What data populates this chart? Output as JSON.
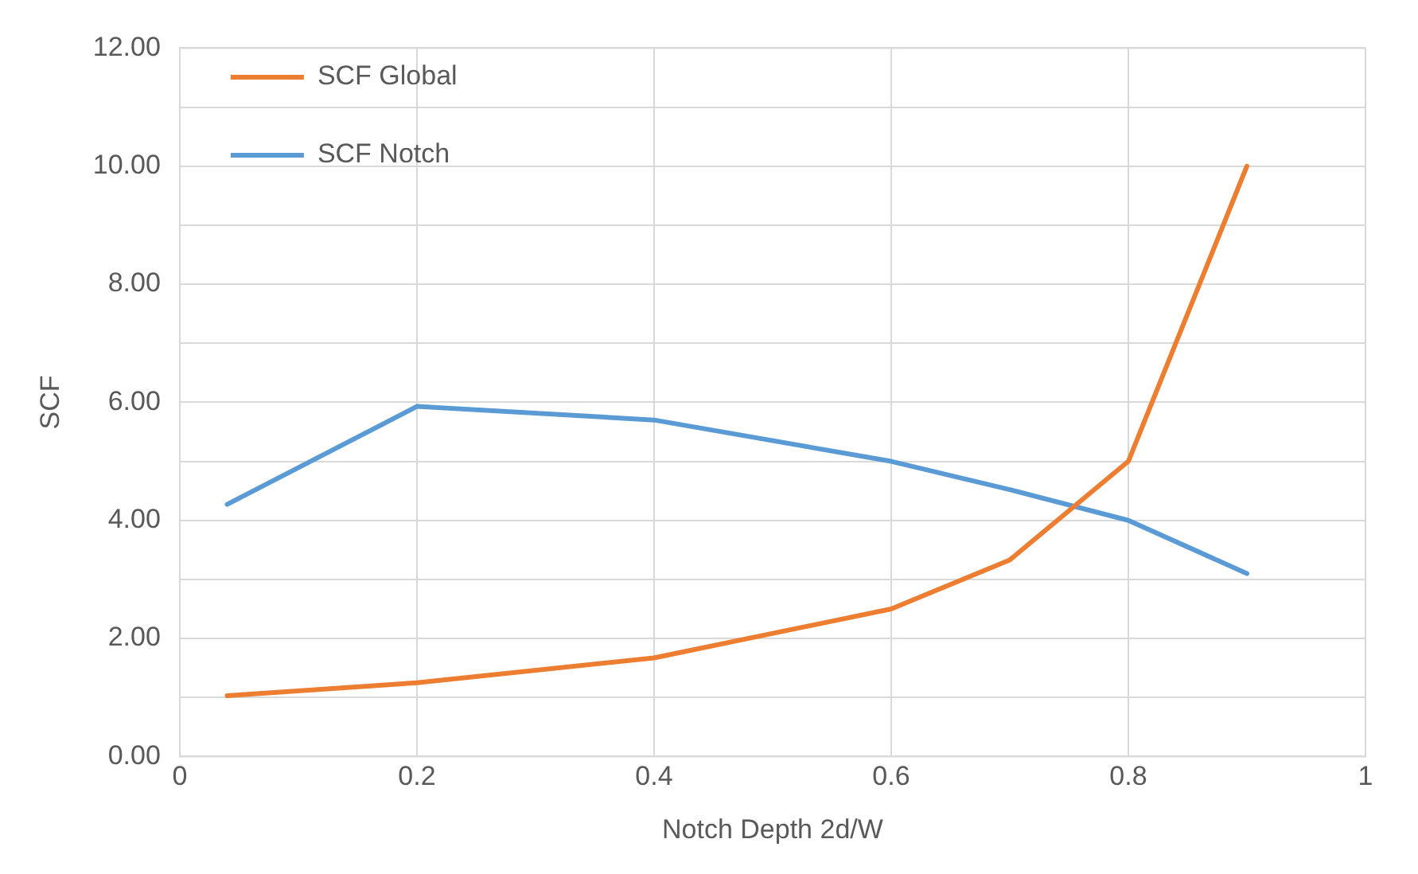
{
  "chart_data": {
    "type": "line",
    "xlabel": "Notch Depth 2d/W",
    "ylabel": "SCF",
    "series": [
      {
        "name": "SCF Global",
        "color": "#ed7d31",
        "x": [
          0.04,
          0.2,
          0.4,
          0.6,
          0.7,
          0.8,
          0.9
        ],
        "values": [
          1.03,
          1.25,
          1.67,
          2.5,
          3.33,
          5.0,
          10.0
        ]
      },
      {
        "name": "SCF Notch",
        "color": "#5b9bd5",
        "x": [
          0.04,
          0.2,
          0.4,
          0.6,
          0.7,
          0.8,
          0.9
        ],
        "values": [
          4.27,
          5.93,
          5.7,
          5.0,
          4.52,
          4.0,
          3.1
        ]
      }
    ],
    "xlim": [
      0,
      1
    ],
    "xticks": [
      0,
      0.2,
      0.4,
      0.6,
      0.8,
      1
    ],
    "ylim": [
      0,
      12
    ],
    "yticks": [
      {
        "value": 0,
        "label": "0.00"
      },
      {
        "value": 1,
        "label": null
      },
      {
        "value": 2,
        "label": "2.00"
      },
      {
        "value": 3,
        "label": null
      },
      {
        "value": 4,
        "label": "4.00"
      },
      {
        "value": 5,
        "label": null
      },
      {
        "value": 6,
        "label": "6.00"
      },
      {
        "value": 7,
        "label": null
      },
      {
        "value": 8,
        "label": "8.00"
      },
      {
        "value": 9,
        "label": null
      },
      {
        "value": 10,
        "label": "10.00"
      },
      {
        "value": 11,
        "label": null
      },
      {
        "value": 12,
        "label": "12.00"
      }
    ],
    "grid": true,
    "legend": "top left",
    "marker": "none",
    "line_style": "solid"
  }
}
